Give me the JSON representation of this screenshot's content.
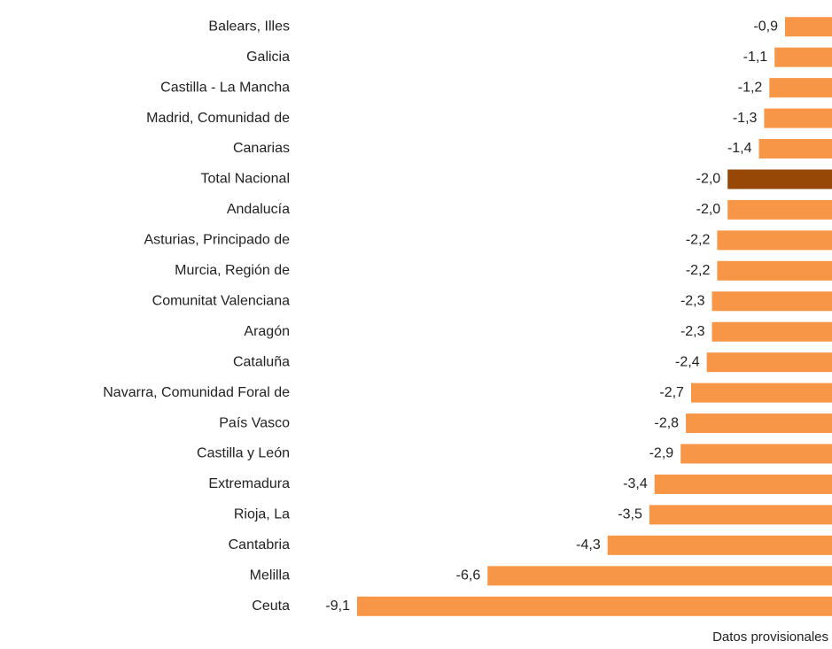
{
  "chart_data": {
    "type": "bar",
    "orientation": "horizontal",
    "categories": [
      "Balears, Illes",
      "Galicia",
      "Castilla - La Mancha",
      "Madrid, Comunidad de",
      "Canarias",
      "Total Nacional",
      "Andalucía",
      "Asturias, Principado de",
      "Murcia, Región de",
      "Comunitat Valenciana",
      "Aragón",
      "Cataluña",
      "Navarra, Comunidad Foral de",
      "País Vasco",
      "Castilla y León",
      "Extremadura",
      "Rioja, La",
      "Cantabria",
      "Melilla",
      "Ceuta"
    ],
    "values": [
      -0.9,
      -1.1,
      -1.2,
      -1.3,
      -1.4,
      -2.0,
      -2.0,
      -2.2,
      -2.2,
      -2.3,
      -2.3,
      -2.4,
      -2.7,
      -2.8,
      -2.9,
      -3.4,
      -3.5,
      -4.3,
      -6.6,
      -9.1
    ],
    "value_labels": [
      "-0,9",
      "-1,1",
      "-1,2",
      "-1,3",
      "-1,4",
      "-2,0",
      "-2,0",
      "-2,2",
      "-2,2",
      "-2,3",
      "-2,3",
      "-2,4",
      "-2,7",
      "-2,8",
      "-2,9",
      "-3,4",
      "-3,5",
      "-4,3",
      "-6,6",
      "-9,1"
    ],
    "colors": [
      "#f79646",
      "#f79646",
      "#f79646",
      "#f79646",
      "#f79646",
      "#974706",
      "#f79646",
      "#f79646",
      "#f79646",
      "#f79646",
      "#f79646",
      "#f79646",
      "#f79646",
      "#f79646",
      "#f79646",
      "#f79646",
      "#f79646",
      "#f79646",
      "#f79646",
      "#f79646"
    ],
    "xlim": [
      -9.1,
      0
    ],
    "note": "Datos provisionales"
  }
}
